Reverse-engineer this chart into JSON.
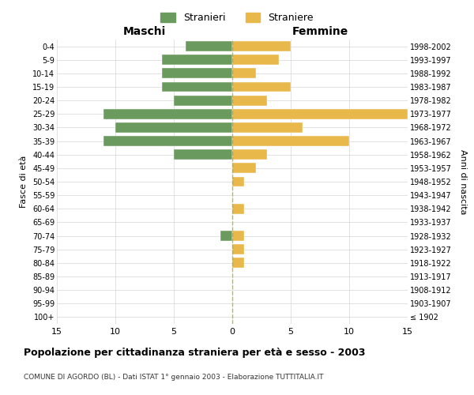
{
  "age_groups": [
    "100+",
    "95-99",
    "90-94",
    "85-89",
    "80-84",
    "75-79",
    "70-74",
    "65-69",
    "60-64",
    "55-59",
    "50-54",
    "45-49",
    "40-44",
    "35-39",
    "30-34",
    "25-29",
    "20-24",
    "15-19",
    "10-14",
    "5-9",
    "0-4"
  ],
  "birth_years": [
    "≤ 1902",
    "1903-1907",
    "1908-1912",
    "1913-1917",
    "1918-1922",
    "1923-1927",
    "1928-1932",
    "1933-1937",
    "1938-1942",
    "1943-1947",
    "1948-1952",
    "1953-1957",
    "1958-1962",
    "1963-1967",
    "1968-1972",
    "1973-1977",
    "1978-1982",
    "1983-1987",
    "1988-1992",
    "1993-1997",
    "1998-2002"
  ],
  "maschi": [
    0,
    0,
    0,
    0,
    0,
    0,
    1,
    0,
    0,
    0,
    0,
    0,
    5,
    11,
    10,
    11,
    5,
    6,
    6,
    6,
    4
  ],
  "femmine": [
    0,
    0,
    0,
    0,
    1,
    1,
    1,
    0,
    1,
    0,
    1,
    2,
    3,
    10,
    6,
    15,
    3,
    5,
    2,
    4,
    5
  ],
  "color_maschi": "#6b9a5e",
  "color_femmine": "#e8b84b",
  "title": "Popolazione per cittadinanza straniera per età e sesso - 2003",
  "subtitle": "COMUNE DI AGORDO (BL) - Dati ISTAT 1° gennaio 2003 - Elaborazione TUTTITALIA.IT",
  "xlabel_left": "Maschi",
  "xlabel_right": "Femmine",
  "ylabel_left": "Fasce di età",
  "ylabel_right": "Anni di nascita",
  "legend_maschi": "Stranieri",
  "legend_femmine": "Straniere",
  "xlim": 15,
  "background_color": "#ffffff",
  "grid_color": "#cccccc"
}
